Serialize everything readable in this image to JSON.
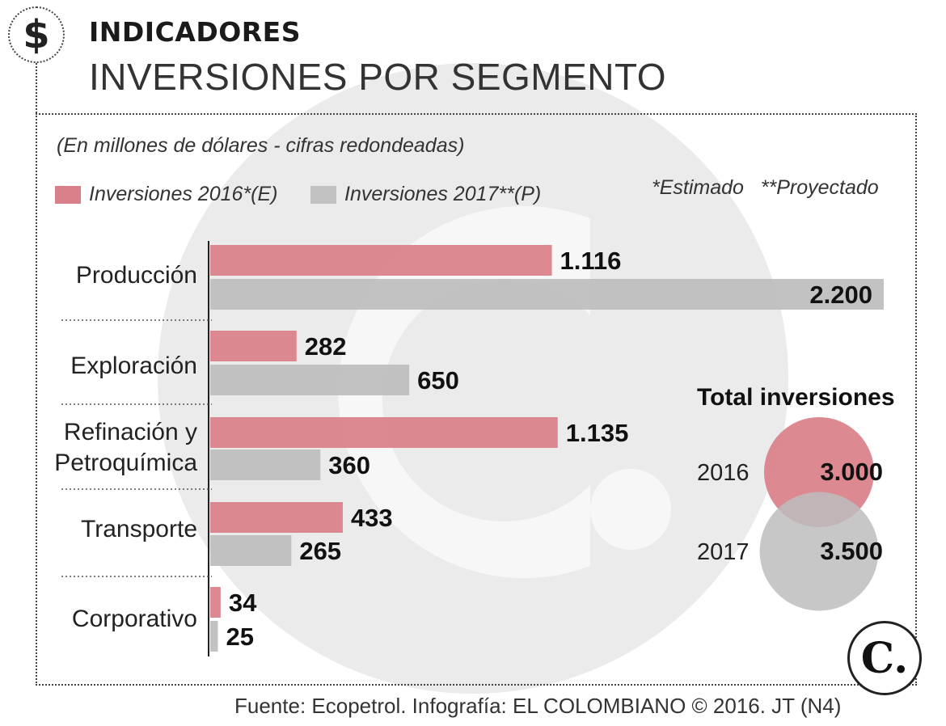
{
  "header": {
    "icon": "dollar-icon",
    "icon_glyph": "$",
    "kicker": "INDICADORES",
    "title": "INVERSIONES POR SEGMENTO"
  },
  "chart_data": {
    "type": "bar",
    "orientation": "horizontal",
    "subtitle": "(En millones de dólares - cifras redondeadas)",
    "categories": [
      "Producción",
      "Exploración",
      "Refinación y\nPetroquímica",
      "Transporte",
      "Corporativo"
    ],
    "series": [
      {
        "name": "Inversiones 2016*(E)",
        "color": "#d97f89",
        "values": [
          1116,
          282,
          1135,
          433,
          34
        ],
        "labels": [
          "1.116",
          "282",
          "1.135",
          "433",
          "34"
        ]
      },
      {
        "name": "Inversiones 2017**(P)",
        "color": "#c2c2c2",
        "values": [
          2200,
          650,
          360,
          265,
          25
        ],
        "labels": [
          "2.200",
          "650",
          "360",
          "265",
          "25"
        ]
      }
    ],
    "xlim": [
      0,
      2200
    ],
    "notes": "*Estimado   **Proyectado",
    "totals": {
      "title": "Total inversiones",
      "items": [
        {
          "year": "2016",
          "value": 3000,
          "label": "3.000",
          "color": "#d97f89"
        },
        {
          "year": "2017",
          "value": 3500,
          "label": "3.500",
          "color": "#bdbdbd"
        }
      ]
    }
  },
  "footer": {
    "source": "Fuente: Ecopetrol. Infografía: EL COLOMBIANO © 2016. JT (N4)",
    "logo_icon": "el-colombiano-logo-icon",
    "logo_glyph": "C."
  }
}
